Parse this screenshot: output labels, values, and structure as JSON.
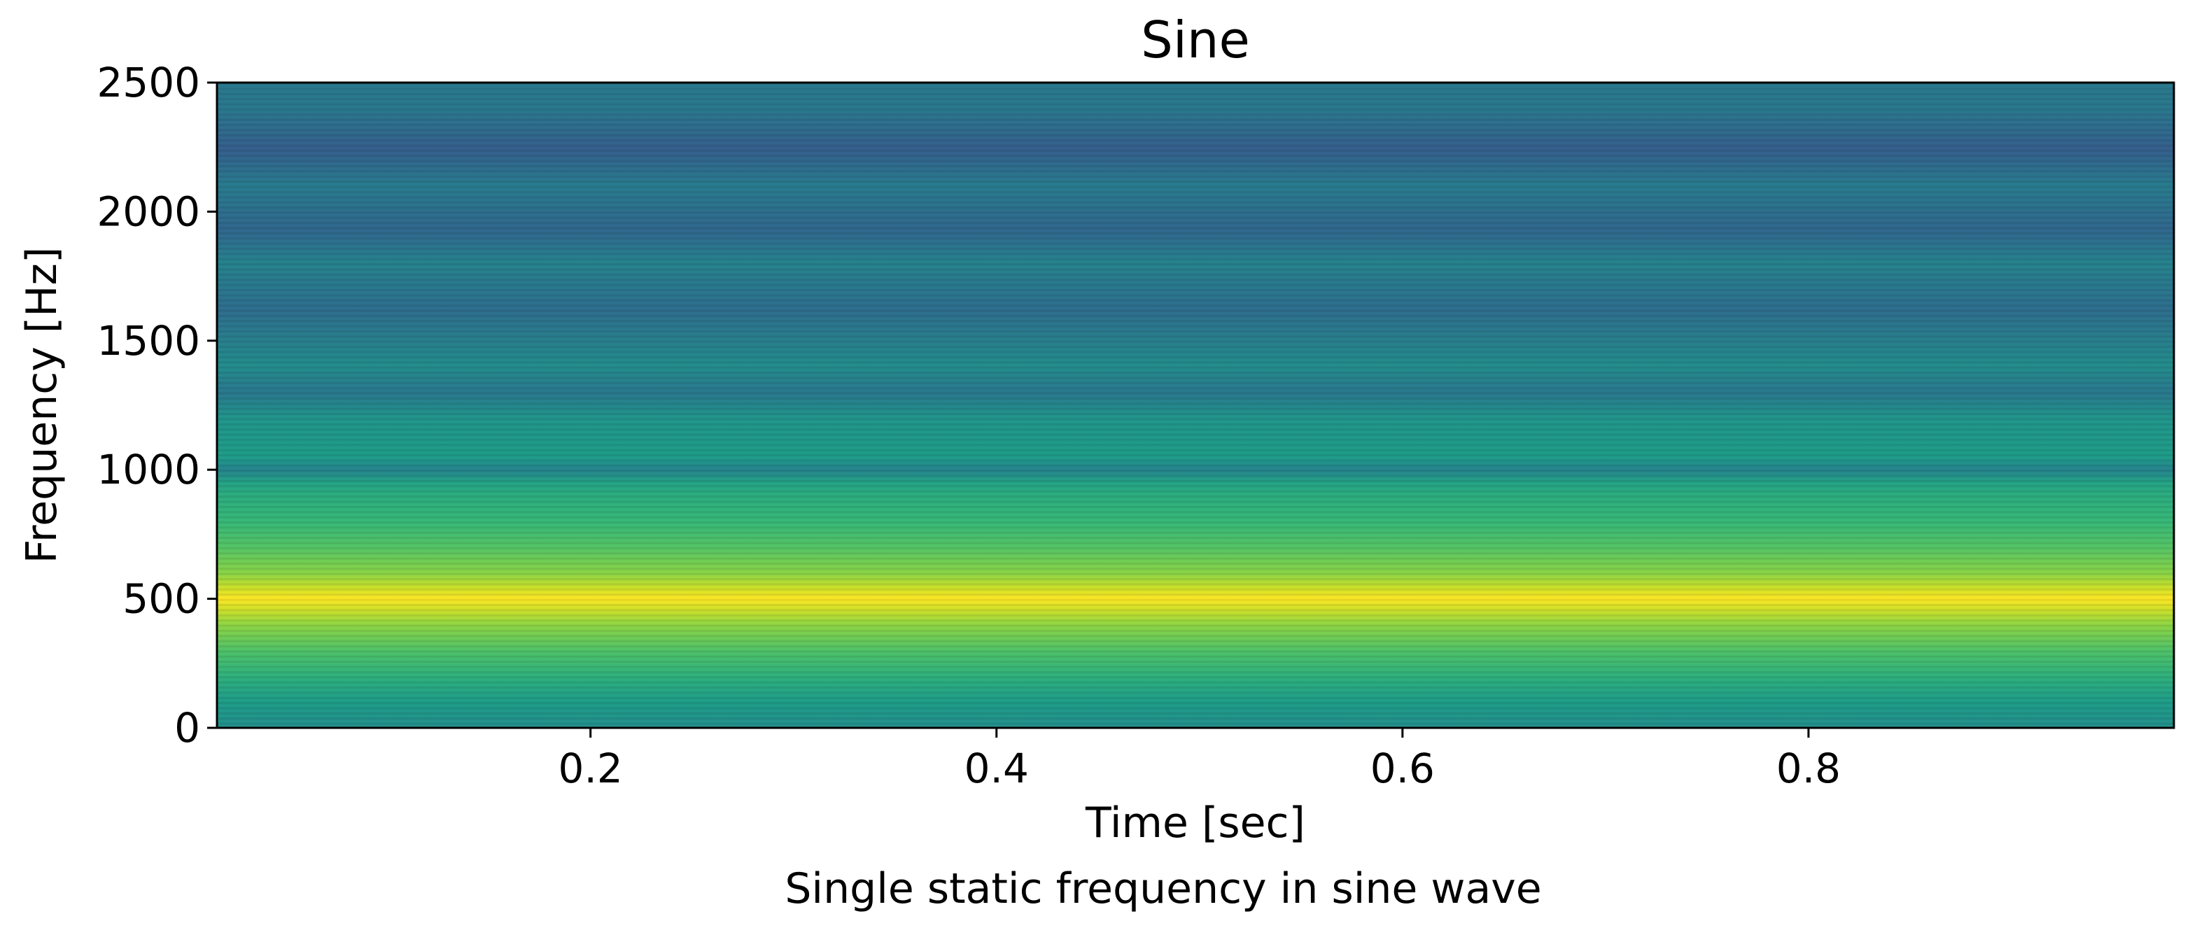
{
  "chart_data": {
    "type": "heatmap",
    "title": "Sine",
    "title_color": "#0000ff",
    "xlabel": "Time [sec]",
    "ylabel": "Frequency [Hz]",
    "caption": "Single static frequency in sine wave",
    "xlim": [
      0.016,
      0.98
    ],
    "ylim": [
      0,
      2500
    ],
    "x_ticks": [
      {
        "value": 0.2,
        "label": "0.2"
      },
      {
        "value": 0.4,
        "label": "0.4"
      },
      {
        "value": 0.6,
        "label": "0.6"
      },
      {
        "value": 0.8,
        "label": "0.8"
      }
    ],
    "y_ticks": [
      {
        "value": 0,
        "label": "0"
      },
      {
        "value": 500,
        "label": "500"
      },
      {
        "value": 1000,
        "label": "1000"
      },
      {
        "value": 1500,
        "label": "1500"
      },
      {
        "value": 2000,
        "label": "2000"
      },
      {
        "value": 2500,
        "label": "2500"
      }
    ],
    "colormap": "viridis",
    "grid": false,
    "frequency_bin_hz": 20,
    "dominant_frequency_hz": 500,
    "intensity_profile": [
      {
        "frequency": 0,
        "level": 0.5
      },
      {
        "frequency": 100,
        "level": 0.55
      },
      {
        "frequency": 200,
        "level": 0.64
      },
      {
        "frequency": 300,
        "level": 0.72
      },
      {
        "frequency": 400,
        "level": 0.83
      },
      {
        "frequency": 460,
        "level": 0.93
      },
      {
        "frequency": 500,
        "level": 1.0
      },
      {
        "frequency": 540,
        "level": 0.93
      },
      {
        "frequency": 600,
        "level": 0.82
      },
      {
        "frequency": 700,
        "level": 0.73
      },
      {
        "frequency": 800,
        "level": 0.67
      },
      {
        "frequency": 900,
        "level": 0.62
      },
      {
        "frequency": 950,
        "level": 0.58
      },
      {
        "frequency": 1000,
        "level": 0.45
      },
      {
        "frequency": 1050,
        "level": 0.55
      },
      {
        "frequency": 1200,
        "level": 0.52
      },
      {
        "frequency": 1300,
        "level": 0.4
      },
      {
        "frequency": 1400,
        "level": 0.49
      },
      {
        "frequency": 1620,
        "level": 0.36
      },
      {
        "frequency": 1800,
        "level": 0.45
      },
      {
        "frequency": 1930,
        "level": 0.33
      },
      {
        "frequency": 2100,
        "level": 0.42
      },
      {
        "frequency": 2240,
        "level": 0.3
      },
      {
        "frequency": 2400,
        "level": 0.4
      },
      {
        "frequency": 2500,
        "level": 0.4
      }
    ]
  }
}
